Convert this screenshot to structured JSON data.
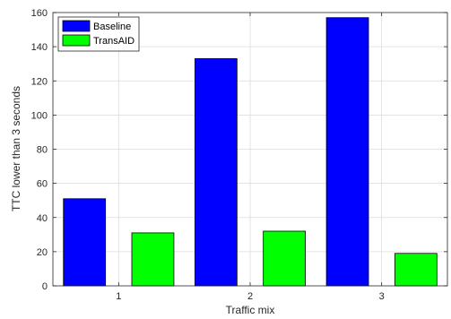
{
  "chart_data": {
    "type": "bar",
    "categories": [
      "1",
      "2",
      "3"
    ],
    "series": [
      {
        "name": "Baseline",
        "values": [
          51,
          133,
          157
        ],
        "color": "#0000ff"
      },
      {
        "name": "TransAID",
        "values": [
          31,
          32,
          19
        ],
        "color": "#00ff00"
      }
    ],
    "xlabel": "Traffic mix",
    "ylabel": "TTC lower than 3 seconds",
    "ylim": [
      0,
      160
    ],
    "yticks": [
      0,
      20,
      40,
      60,
      80,
      100,
      120,
      140,
      160
    ],
    "grid": true,
    "legend_position": "top-left"
  }
}
